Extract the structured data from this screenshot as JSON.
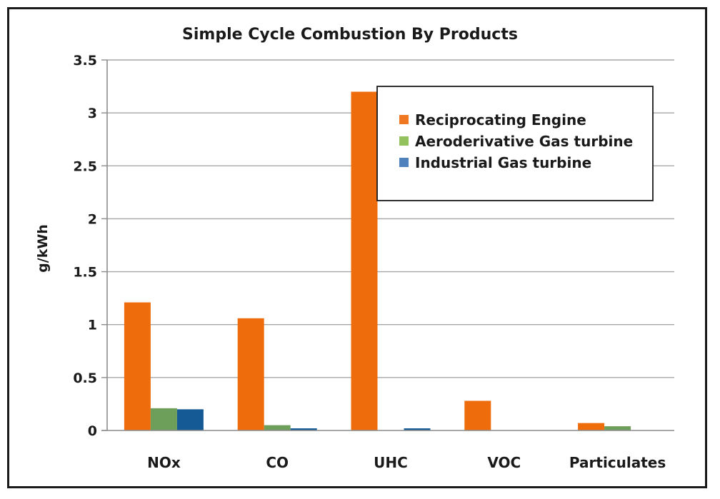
{
  "chart_data": {
    "type": "bar",
    "title": "Simple Cycle Combustion By Products",
    "xlabel": "",
    "ylabel": "g/kWh",
    "ylim": [
      0,
      3.5
    ],
    "yticks": [
      0,
      0.5,
      1,
      1.5,
      2,
      2.5,
      3,
      3.5
    ],
    "ytick_labels": [
      "0",
      "0.5",
      "1",
      "1.5",
      "2",
      "2.5",
      "3",
      "3.5"
    ],
    "grid": true,
    "legend_position": "top-right",
    "categories": [
      "NOx",
      "CO",
      "UHC",
      "VOC",
      "Particulates"
    ],
    "series": [
      {
        "name": "Reciprocating Engine",
        "color": "#ee6c0c",
        "legend_color": "#f07822",
        "values": [
          1.21,
          1.06,
          3.2,
          0.28,
          0.07
        ]
      },
      {
        "name": "Aeroderivative Gas turbine",
        "color": "#6e9f5a",
        "legend_color": "#92c15e",
        "values": [
          0.21,
          0.05,
          0.0,
          0.0,
          0.04
        ]
      },
      {
        "name": "Industrial Gas turbine",
        "color": "#155a94",
        "legend_color": "#4f81bd",
        "values": [
          0.2,
          0.02,
          0.02,
          0.0,
          0.0
        ]
      }
    ]
  }
}
